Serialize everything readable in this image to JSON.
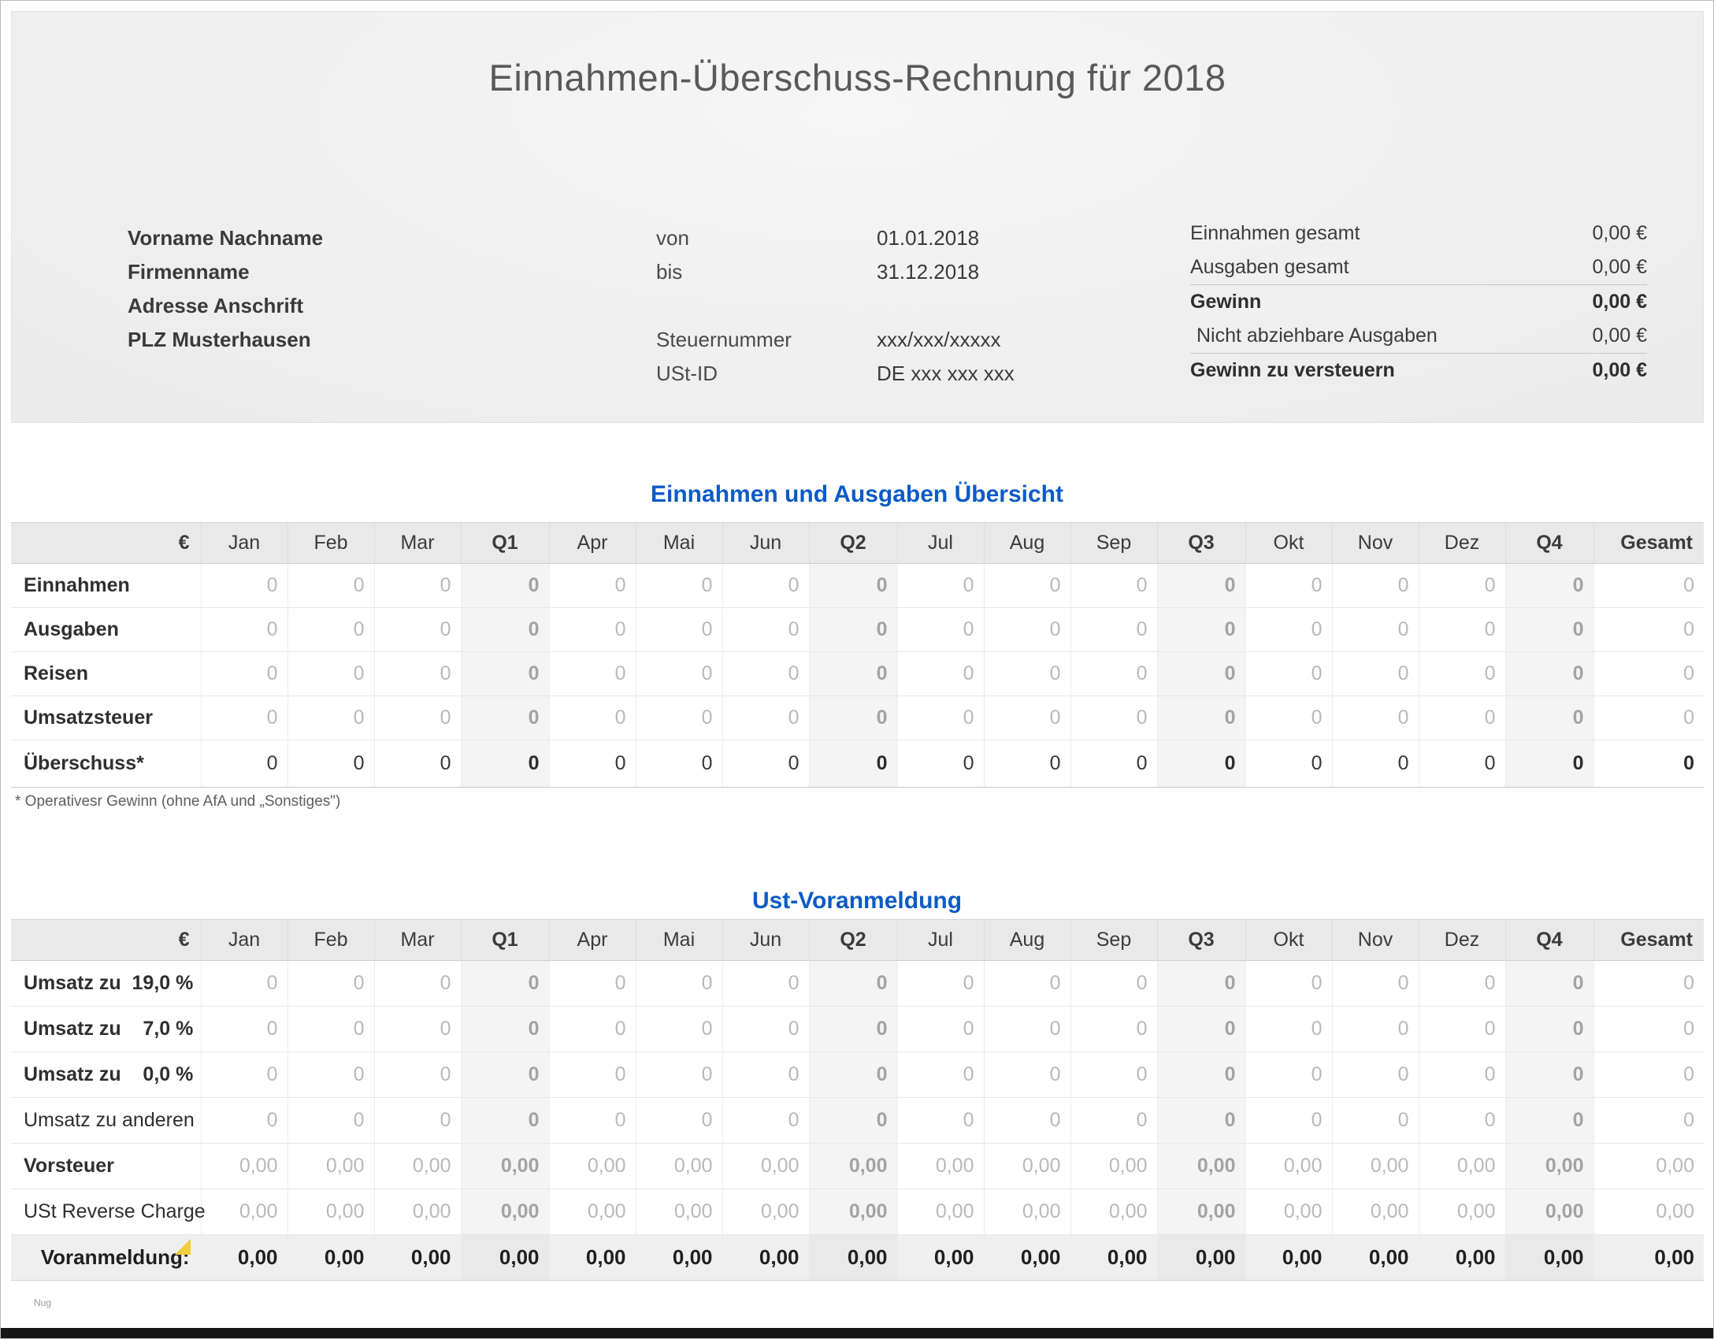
{
  "doc": {
    "title": "Einnahmen-Überschuss-Rechnung für 2018",
    "watermark": "Nug"
  },
  "header": {
    "identity": [
      "Vorname Nachname",
      "Firmenname",
      "Adresse Anschrift",
      "PLZ Musterhausen"
    ],
    "meta": [
      {
        "label": "von",
        "value": "01.01.2018"
      },
      {
        "label": "bis",
        "value": "31.12.2018"
      },
      {
        "label": "Steuernummer",
        "value": "xxx/xxx/xxxxx"
      },
      {
        "label": "USt-ID",
        "value": "DE xxx xxx xxx"
      }
    ],
    "summary": [
      {
        "label": "Einnahmen gesamt",
        "value": "0,00 €"
      },
      {
        "label": "Ausgaben gesamt",
        "value": "0,00 €"
      },
      {
        "label": "Gewinn",
        "value": "0,00 €"
      },
      {
        "label": "Nicht abziehbare Ausgaben",
        "value": "0,00 €"
      },
      {
        "label": "Gewinn zu versteuern",
        "value": "0,00 €"
      }
    ]
  },
  "columns": [
    "€",
    "Jan",
    "Feb",
    "Mar",
    "Q1",
    "Apr",
    "Mai",
    "Jun",
    "Q2",
    "Jul",
    "Aug",
    "Sep",
    "Q3",
    "Okt",
    "Nov",
    "Dez",
    "Q4",
    "Gesamt"
  ],
  "overview": {
    "title": "Einnahmen und Ausgaben Übersicht",
    "footnote": "* Operativesr Gewinn (ohne AfA und „Sonstiges\")",
    "rows": [
      {
        "label": "Einnahmen",
        "bold": true,
        "style": "data",
        "values": [
          "0",
          "0",
          "0",
          "0",
          "0",
          "0",
          "0",
          "0",
          "0",
          "0",
          "0",
          "0",
          "0",
          "0",
          "0",
          "0",
          "0"
        ]
      },
      {
        "label": "Ausgaben",
        "bold": true,
        "style": "data",
        "values": [
          "0",
          "0",
          "0",
          "0",
          "0",
          "0",
          "0",
          "0",
          "0",
          "0",
          "0",
          "0",
          "0",
          "0",
          "0",
          "0",
          "0"
        ]
      },
      {
        "label": "Reisen",
        "bold": true,
        "style": "data",
        "values": [
          "0",
          "0",
          "0",
          "0",
          "0",
          "0",
          "0",
          "0",
          "0",
          "0",
          "0",
          "0",
          "0",
          "0",
          "0",
          "0",
          "0"
        ]
      },
      {
        "label": "Umsatzsteuer",
        "bold": true,
        "style": "data",
        "values": [
          "0",
          "0",
          "0",
          "0",
          "0",
          "0",
          "0",
          "0",
          "0",
          "0",
          "0",
          "0",
          "0",
          "0",
          "0",
          "0",
          "0"
        ]
      },
      {
        "label": "Überschuss*",
        "bold": true,
        "style": "emphasis",
        "values": [
          "0",
          "0",
          "0",
          "0",
          "0",
          "0",
          "0",
          "0",
          "0",
          "0",
          "0",
          "0",
          "0",
          "0",
          "0",
          "0",
          "0"
        ]
      }
    ]
  },
  "ust": {
    "title": "Ust-Voranmeldung",
    "rows": [
      {
        "label": "Umsatz zu  19,0 %",
        "bold": true,
        "style": "data",
        "values": [
          "0",
          "0",
          "0",
          "0",
          "0",
          "0",
          "0",
          "0",
          "0",
          "0",
          "0",
          "0",
          "0",
          "0",
          "0",
          "0",
          "0"
        ]
      },
      {
        "label": "Umsatz zu    7,0 %",
        "bold": true,
        "style": "data",
        "values": [
          "0",
          "0",
          "0",
          "0",
          "0",
          "0",
          "0",
          "0",
          "0",
          "0",
          "0",
          "0",
          "0",
          "0",
          "0",
          "0",
          "0"
        ]
      },
      {
        "label": "Umsatz zu    0,0 %",
        "bold": true,
        "style": "data",
        "values": [
          "0",
          "0",
          "0",
          "0",
          "0",
          "0",
          "0",
          "0",
          "0",
          "0",
          "0",
          "0",
          "0",
          "0",
          "0",
          "0",
          "0"
        ]
      },
      {
        "label": "Umsatz zu anderen",
        "bold": false,
        "style": "data",
        "values": [
          "0",
          "0",
          "0",
          "0",
          "0",
          "0",
          "0",
          "0",
          "0",
          "0",
          "0",
          "0",
          "0",
          "0",
          "0",
          "0",
          "0"
        ]
      },
      {
        "label": "Vorsteuer",
        "bold": true,
        "style": "data",
        "values": [
          "0,00",
          "0,00",
          "0,00",
          "0,00",
          "0,00",
          "0,00",
          "0,00",
          "0,00",
          "0,00",
          "0,00",
          "0,00",
          "0,00",
          "0,00",
          "0,00",
          "0,00",
          "0,00",
          "0,00"
        ]
      },
      {
        "label": "USt Reverse Charge",
        "bold": false,
        "style": "data",
        "values": [
          "0,00",
          "0,00",
          "0,00",
          "0,00",
          "0,00",
          "0,00",
          "0,00",
          "0,00",
          "0,00",
          "0,00",
          "0,00",
          "0,00",
          "0,00",
          "0,00",
          "0,00",
          "0,00",
          "0,00"
        ]
      },
      {
        "label": "Voranmeldung:",
        "bold": true,
        "style": "total",
        "values": [
          "0,00",
          "0,00",
          "0,00",
          "0,00",
          "0,00",
          "0,00",
          "0,00",
          "0,00",
          "0,00",
          "0,00",
          "0,00",
          "0,00",
          "0,00",
          "0,00",
          "0,00",
          "0,00",
          "0,00"
        ]
      }
    ]
  },
  "colors": {
    "accent_blue": "#0b5bc5",
    "header_gray": "#e9e9e9",
    "quarter_gray": "#f4f4f4",
    "marker_yellow": "#f0cd3a"
  }
}
